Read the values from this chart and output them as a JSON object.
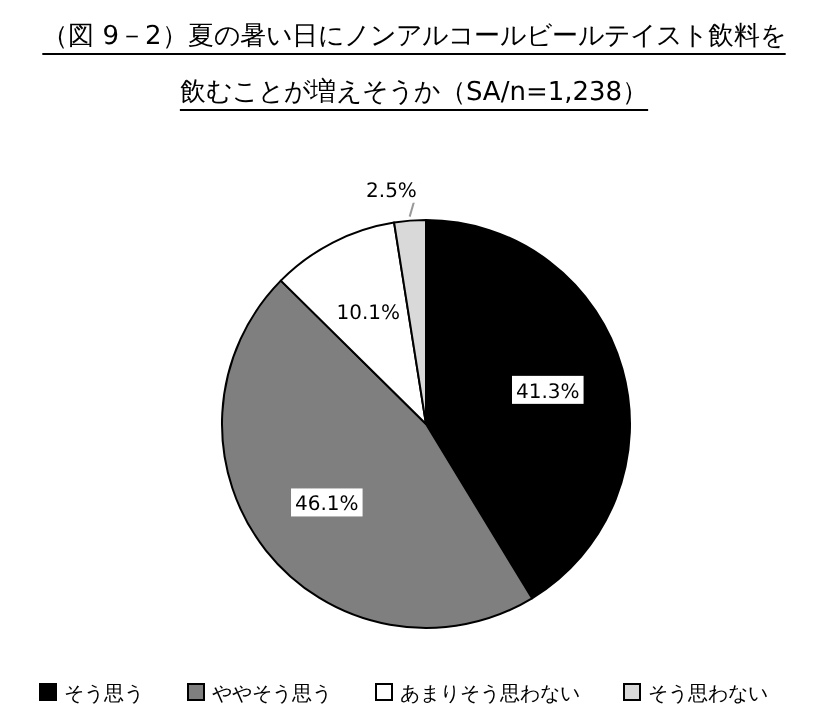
{
  "chart_data": {
    "type": "pie",
    "title": "（図 9－2）夏の暑い日にノンアルコールビールテイスト飲料を飲むことが増えそうか（SA/n=1,238）",
    "categories": [
      "そう思う",
      "ややそう思う",
      "あまりそう思わない",
      "そう思わない"
    ],
    "values": [
      41.3,
      46.1,
      10.1,
      2.5
    ],
    "colors": [
      "#000000",
      "#7f7f7f",
      "#ffffff",
      "#d9d9d9"
    ],
    "value_labels": [
      "41.3%",
      "46.1%",
      "10.1%",
      "2.5%"
    ],
    "legend": "bottom"
  }
}
